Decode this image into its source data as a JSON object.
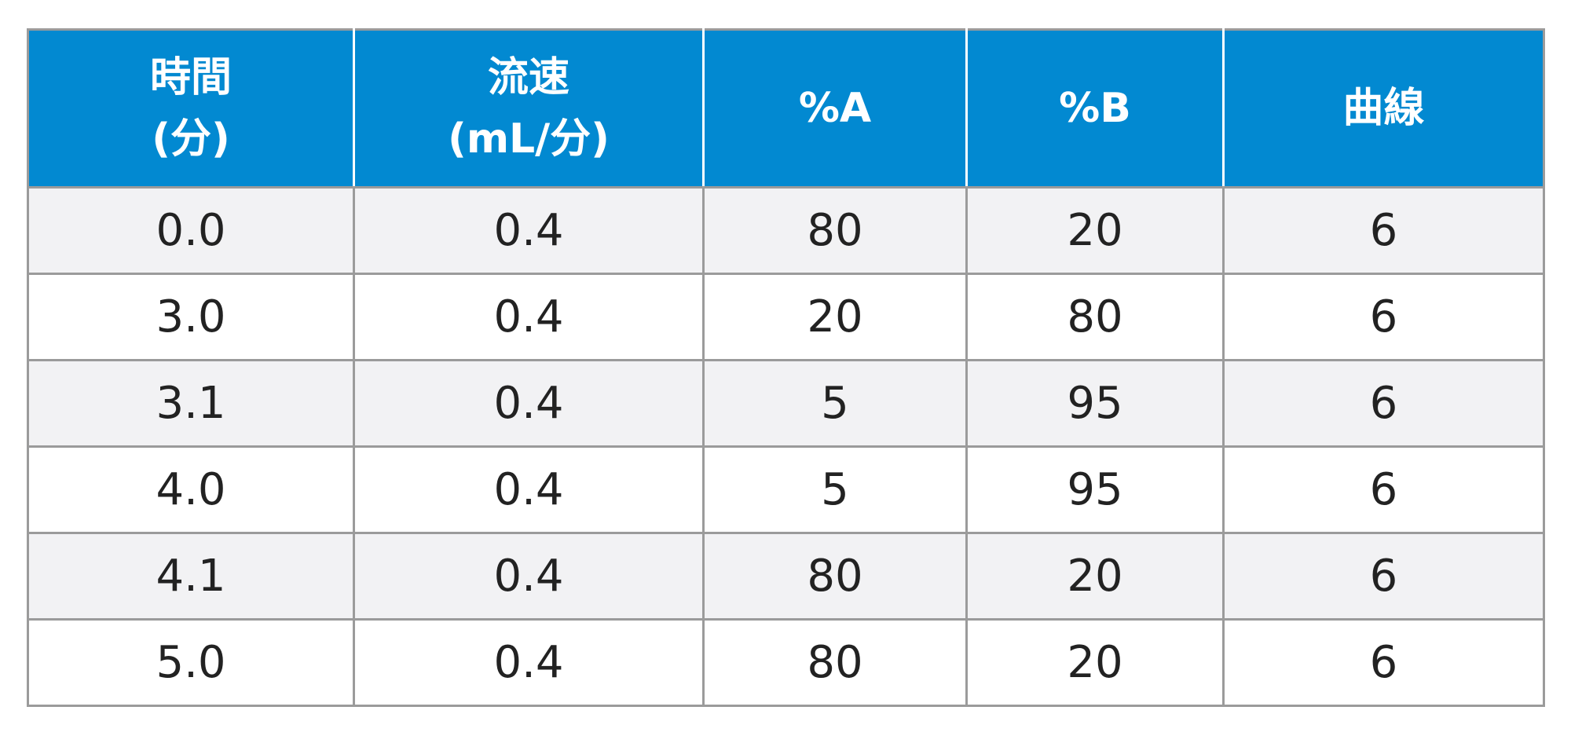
{
  "table": {
    "headers": [
      {
        "line1": "時間",
        "line2": "(分)"
      },
      {
        "line1": "流速",
        "line2": "(mL/分)"
      },
      {
        "line1": "%A",
        "line2": ""
      },
      {
        "line1": "%B",
        "line2": ""
      },
      {
        "line1": "曲線",
        "line2": ""
      }
    ],
    "rows": [
      [
        "0.0",
        "0.4",
        "80",
        "20",
        "6"
      ],
      [
        "3.0",
        "0.4",
        "20",
        "80",
        "6"
      ],
      [
        "3.1",
        "0.4",
        "5",
        "95",
        "6"
      ],
      [
        "4.0",
        "0.4",
        "5",
        "95",
        "6"
      ],
      [
        "4.1",
        "0.4",
        "80",
        "20",
        "6"
      ],
      [
        "5.0",
        "0.4",
        "80",
        "20",
        "6"
      ]
    ]
  },
  "colors": {
    "header_bg": "#0289d1",
    "header_text": "#ffffff",
    "row_shaded": "#f2f2f4",
    "row_plain": "#ffffff",
    "grid": "#9b9b9b"
  }
}
